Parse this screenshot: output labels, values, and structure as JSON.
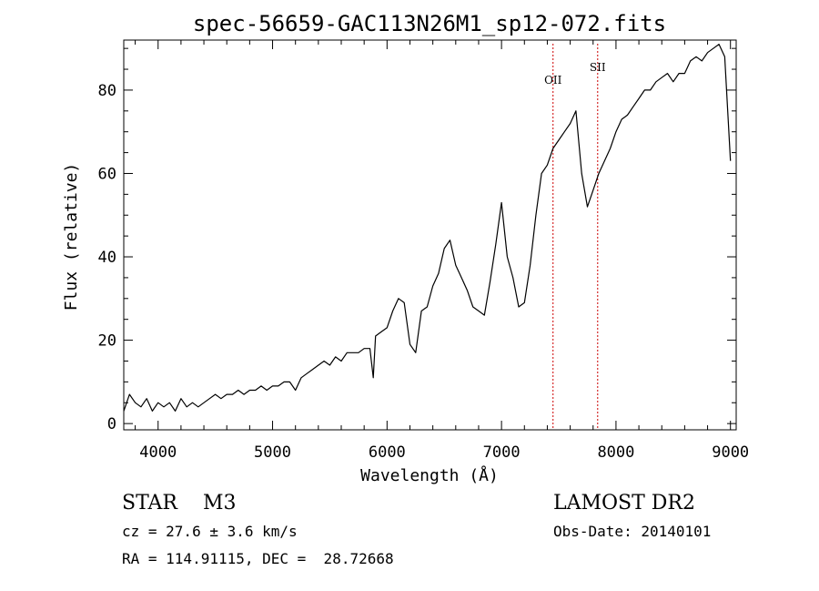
{
  "chart_data": {
    "type": "line",
    "title": "spec-56659-GAC113N26M1_sp12-072.fits",
    "xlabel": "Wavelength (Å)",
    "ylabel": "Flux (relative)",
    "xlim": [
      3700,
      9050
    ],
    "ylim": [
      -1.5,
      92
    ],
    "x_ticks": [
      4000,
      5000,
      6000,
      7000,
      8000,
      9000
    ],
    "y_ticks": [
      0,
      20,
      40,
      60,
      80
    ],
    "grid": false,
    "line_color": "#000000",
    "reference_lines": [
      {
        "label": "OII",
        "x": 7450,
        "color": "#cc0000"
      },
      {
        "label": "SII",
        "x": 7840,
        "color": "#cc0000"
      }
    ],
    "series": [
      {
        "x": [
          3700,
          3750,
          3800,
          3850,
          3900,
          3950,
          4000,
          4050,
          4100,
          4150,
          4200,
          4250,
          4300,
          4350,
          4400,
          4450,
          4500,
          4550,
          4600,
          4650,
          4700,
          4750,
          4800,
          4850,
          4900,
          4950,
          5000,
          5050,
          5100,
          5150,
          5200,
          5250,
          5300,
          5350,
          5400,
          5450,
          5500,
          5550,
          5600,
          5650,
          5700,
          5750,
          5800,
          5850,
          5880,
          5900,
          5950,
          6000,
          6050,
          6100,
          6150,
          6200,
          6250,
          6300,
          6350,
          6400,
          6450,
          6500,
          6550,
          6600,
          6650,
          6700,
          6750,
          6800,
          6850,
          6900,
          6950,
          7000,
          7050,
          7100,
          7150,
          7200,
          7250,
          7300,
          7350,
          7400,
          7450,
          7500,
          7550,
          7600,
          7650,
          7700,
          7750,
          7800,
          7850,
          7900,
          7950,
          8000,
          8050,
          8100,
          8150,
          8200,
          8250,
          8300,
          8350,
          8400,
          8450,
          8500,
          8550,
          8600,
          8650,
          8700,
          8750,
          8800,
          8850,
          8900,
          8950,
          9000
        ],
        "y": [
          3,
          7,
          5,
          4,
          6,
          3,
          5,
          4,
          5,
          3,
          6,
          4,
          5,
          4,
          5,
          6,
          7,
          6,
          7,
          7,
          8,
          7,
          8,
          8,
          9,
          8,
          9,
          9,
          10,
          10,
          8,
          11,
          12,
          13,
          14,
          15,
          14,
          16,
          15,
          17,
          17,
          17,
          18,
          18,
          11,
          21,
          22,
          23,
          27,
          30,
          29,
          19,
          17,
          27,
          28,
          33,
          36,
          42,
          44,
          38,
          35,
          32,
          28,
          27,
          26,
          34,
          43,
          53,
          40,
          35,
          28,
          29,
          38,
          50,
          60,
          62,
          66,
          68,
          70,
          72,
          75,
          60,
          52,
          56,
          60,
          63,
          66,
          70,
          73,
          74,
          76,
          78,
          80,
          80,
          82,
          83,
          84,
          82,
          84,
          84,
          87,
          88,
          87,
          89,
          90,
          91,
          88,
          63
        ]
      }
    ]
  },
  "info": {
    "left_line1": "STAR    M3",
    "left_line2": "cz = 27.6 ± 3.6 km/s",
    "left_line3": "RA = 114.91115, DEC =  28.72668",
    "right_line1": "LAMOST DR2",
    "right_line2": "Obs-Date: 20140101"
  }
}
